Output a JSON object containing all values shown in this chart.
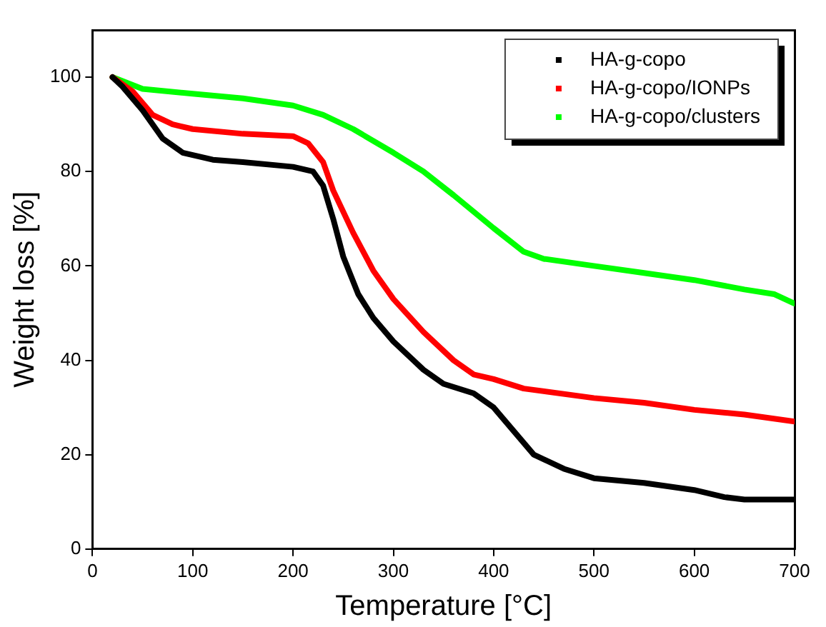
{
  "chart_data": {
    "type": "line",
    "xlabel": "Temperature [°C]",
    "ylabel": "Weight loss [%]",
    "xlim": [
      0,
      700
    ],
    "xticks": [
      0,
      100,
      200,
      300,
      400,
      500,
      600,
      700
    ],
    "ylim": [
      0,
      110
    ],
    "yticks": [
      0,
      20,
      40,
      60,
      80,
      100
    ],
    "grid": false,
    "legend": "top right",
    "marker": "none",
    "line_style": "solid",
    "series": [
      {
        "name": "HA-g-copo",
        "color": "#000000",
        "x": [
          20,
          30,
          50,
          70,
          90,
          120,
          150,
          200,
          220,
          230,
          240,
          250,
          265,
          280,
          300,
          330,
          350,
          380,
          400,
          420,
          440,
          470,
          500,
          550,
          600,
          630,
          650,
          700
        ],
        "values": [
          100,
          98,
          93,
          87,
          84,
          82.5,
          82,
          81,
          80,
          77,
          70,
          62,
          54,
          49,
          44,
          38,
          35,
          33,
          30,
          25,
          20,
          17,
          15,
          14,
          12.5,
          11,
          10.5,
          10.5
        ]
      },
      {
        "name": "HA-g-copo/IONPs",
        "color": "#ff0000",
        "x": [
          20,
          40,
          60,
          80,
          100,
          150,
          200,
          215,
          230,
          240,
          260,
          280,
          300,
          330,
          360,
          380,
          400,
          430,
          500,
          550,
          600,
          650,
          700
        ],
        "values": [
          100,
          97,
          92,
          90,
          89,
          88,
          87.5,
          86,
          82,
          76,
          67,
          59,
          53,
          46,
          40,
          37,
          36,
          34,
          32,
          31,
          29.5,
          28.5,
          27
        ]
      },
      {
        "name": "HA-g-copo/clusters",
        "color": "#00ff00",
        "x": [
          20,
          50,
          100,
          150,
          200,
          230,
          260,
          300,
          330,
          360,
          400,
          430,
          450,
          500,
          550,
          600,
          650,
          680,
          700
        ],
        "values": [
          100,
          97.5,
          96.5,
          95.5,
          94,
          92,
          89,
          84,
          80,
          75,
          68,
          63,
          61.5,
          60,
          58.5,
          57,
          55,
          54,
          52
        ]
      }
    ]
  }
}
